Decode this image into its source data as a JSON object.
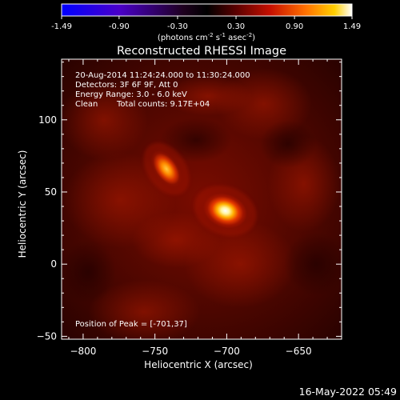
{
  "chart_data": {
    "type": "heatmap",
    "title": "Reconstructed RHESSI Image",
    "xlabel": "Heliocentric X (arcsec)",
    "ylabel": "Heliocentric Y (arcsec)",
    "xlim": [
      -815,
      -620
    ],
    "ylim": [
      -52,
      142
    ],
    "x_ticks": [
      -800,
      -750,
      -700,
      -650
    ],
    "y_ticks": [
      -50,
      0,
      50,
      100
    ],
    "colorbar": {
      "range": [
        -1.49,
        1.49
      ],
      "ticks": [
        "-1.49",
        "-0.90",
        "-0.30",
        "0.30",
        "0.90",
        "1.49"
      ],
      "unit_parts": [
        "(photons cm",
        "-2",
        " s",
        "-1",
        " asec",
        "-2",
        ")"
      ]
    },
    "annotations": {
      "time": "20-Aug-2014 11:24:24.000 to 11:30:24.000",
      "detectors": "Detectors: 3F 6F 9F, Att 0",
      "energy": "Energy Range: 3.0 - 6.0 keV",
      "method": "Clean",
      "counts": "Total counts: 9.17E+04",
      "peak": "Position of Peak = [-701,37]"
    },
    "sources": [
      {
        "x": -701,
        "y": 37,
        "value": 1.49
      },
      {
        "x": -742,
        "y": 66,
        "value": 0.95
      }
    ],
    "footer_date": "16-May-2022 05:49"
  }
}
